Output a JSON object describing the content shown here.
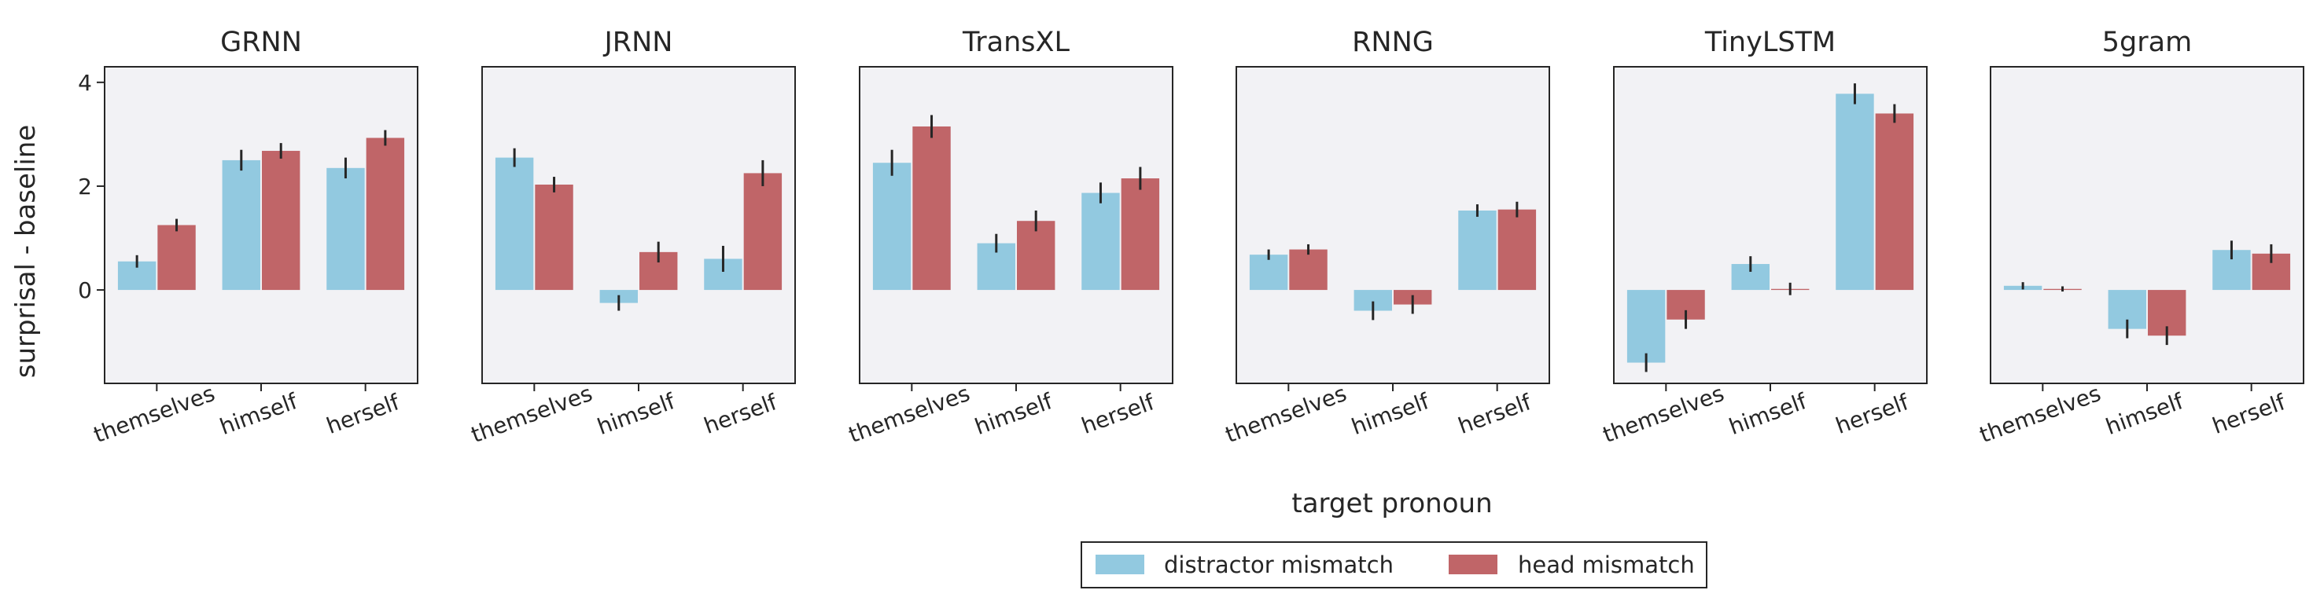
{
  "figure": {
    "xlabel": "target pronoun",
    "ylabel": "surprisal - baseline"
  },
  "legend": {
    "placement": "bottom-center",
    "items": [
      {
        "label": "distractor mismatch",
        "color": "#92c9e0"
      },
      {
        "label": "head mismatch",
        "color": "#c06568"
      }
    ]
  },
  "colors": {
    "panel_bg": "#f2f2f5",
    "error_bar": "#262626",
    "frame": "#262626"
  },
  "chart_data": [
    {
      "type": "bar",
      "title": "GRNN",
      "categories": [
        "themselves",
        "himself",
        "herself"
      ],
      "ylim": [
        -1.8,
        4.3
      ],
      "yticks": [
        0,
        2,
        4
      ],
      "series": [
        {
          "name": "distractor mismatch",
          "values": [
            0.55,
            2.5,
            2.35
          ],
          "errors": [
            0.12,
            0.2,
            0.2
          ]
        },
        {
          "name": "head mismatch",
          "values": [
            1.25,
            2.68,
            2.93
          ],
          "errors": [
            0.12,
            0.15,
            0.15
          ]
        }
      ]
    },
    {
      "type": "bar",
      "title": "JRNN",
      "categories": [
        "themselves",
        "himself",
        "herself"
      ],
      "ylim": [
        -1.8,
        4.3
      ],
      "yticks": [
        0,
        2,
        4
      ],
      "series": [
        {
          "name": "distractor mismatch",
          "values": [
            2.55,
            -0.25,
            0.6
          ],
          "errors": [
            0.18,
            0.15,
            0.25
          ]
        },
        {
          "name": "head mismatch",
          "values": [
            2.03,
            0.73,
            2.25
          ],
          "errors": [
            0.15,
            0.2,
            0.25
          ]
        }
      ]
    },
    {
      "type": "bar",
      "title": "TransXL",
      "categories": [
        "themselves",
        "himself",
        "herself"
      ],
      "ylim": [
        -1.8,
        4.3
      ],
      "yticks": [
        0,
        2,
        4
      ],
      "series": [
        {
          "name": "distractor mismatch",
          "values": [
            2.45,
            0.9,
            1.87
          ],
          "errors": [
            0.25,
            0.18,
            0.2
          ]
        },
        {
          "name": "head mismatch",
          "values": [
            3.15,
            1.33,
            2.15
          ],
          "errors": [
            0.22,
            0.2,
            0.22
          ]
        }
      ]
    },
    {
      "type": "bar",
      "title": "RNNG",
      "categories": [
        "themselves",
        "himself",
        "herself"
      ],
      "ylim": [
        -1.8,
        4.3
      ],
      "yticks": [
        0,
        2,
        4
      ],
      "series": [
        {
          "name": "distractor mismatch",
          "values": [
            0.68,
            -0.4,
            1.53
          ],
          "errors": [
            0.1,
            0.18,
            0.12
          ]
        },
        {
          "name": "head mismatch",
          "values": [
            0.78,
            -0.28,
            1.55
          ],
          "errors": [
            0.1,
            0.18,
            0.15
          ]
        }
      ]
    },
    {
      "type": "bar",
      "title": "TinyLSTM",
      "categories": [
        "themselves",
        "himself",
        "herself"
      ],
      "ylim": [
        -1.8,
        4.3
      ],
      "yticks": [
        0,
        2,
        4
      ],
      "series": [
        {
          "name": "distractor mismatch",
          "values": [
            -1.4,
            0.5,
            3.78
          ],
          "errors": [
            0.18,
            0.15,
            0.2
          ]
        },
        {
          "name": "head mismatch",
          "values": [
            -0.57,
            0.02,
            3.4
          ],
          "errors": [
            0.18,
            0.12,
            0.18
          ]
        }
      ]
    },
    {
      "type": "bar",
      "title": "5gram",
      "categories": [
        "themselves",
        "himself",
        "herself"
      ],
      "ylim": [
        -1.8,
        4.3
      ],
      "yticks": [
        0,
        2,
        4
      ],
      "series": [
        {
          "name": "distractor mismatch",
          "values": [
            0.08,
            -0.75,
            0.77
          ],
          "errors": [
            0.07,
            0.18,
            0.18
          ]
        },
        {
          "name": "head mismatch",
          "values": [
            0.02,
            -0.88,
            0.7
          ],
          "errors": [
            0.05,
            0.18,
            0.18
          ]
        }
      ]
    }
  ]
}
